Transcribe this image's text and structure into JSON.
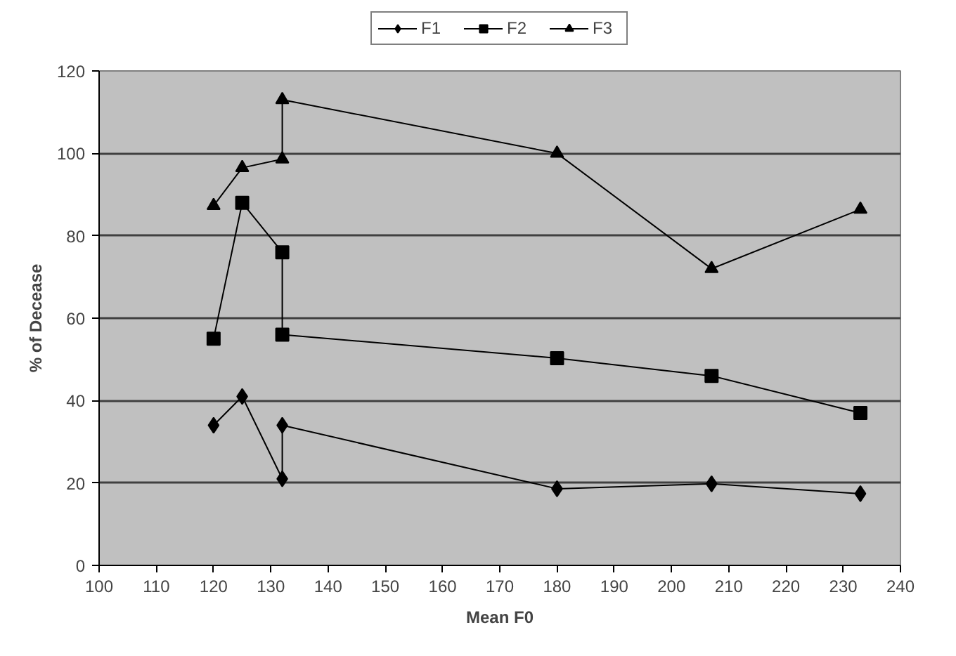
{
  "chart_data": {
    "type": "line",
    "xlabel": "Mean F0",
    "ylabel": "% of Decease",
    "xlim": [
      100,
      240
    ],
    "xticks": [
      100,
      110,
      120,
      130,
      140,
      150,
      160,
      170,
      180,
      190,
      200,
      210,
      220,
      230,
      240
    ],
    "ylim": [
      0,
      120
    ],
    "yticks": [
      0,
      20,
      40,
      60,
      80,
      100,
      120
    ],
    "grid": "y",
    "legend": "top",
    "line_style": "solid",
    "x": [
      120,
      125,
      132,
      132,
      180,
      207,
      233
    ],
    "series": [
      {
        "name": "F1",
        "color": "#000000",
        "marker": "diamond",
        "values": [
          34,
          41,
          21,
          34,
          18.6,
          19.8,
          17.4
        ]
      },
      {
        "name": "F2",
        "color": "#000000",
        "marker": "square",
        "values": [
          55,
          88,
          76,
          56,
          50.3,
          46,
          37
        ]
      },
      {
        "name": "F3",
        "color": "#000000",
        "marker": "triangle",
        "values": [
          87.3,
          96.5,
          98.6,
          113,
          100,
          72,
          86.4
        ]
      }
    ]
  }
}
